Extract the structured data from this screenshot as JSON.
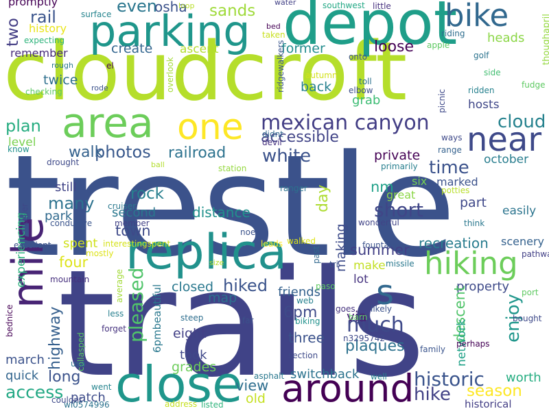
{
  "words": [
    {
      "text": "trestle",
      "color": "#3b528b"
    },
    {
      "text": "trails",
      "color": "#404387"
    },
    {
      "text": "cloudcroft",
      "color": "#b5de2b"
    },
    {
      "text": "depot",
      "color": "#1f9e89"
    },
    {
      "text": "parking",
      "color": "#1f968b"
    },
    {
      "text": "replica",
      "color": "#21918c"
    },
    {
      "text": "area",
      "color": "#6ccd5a"
    },
    {
      "text": "one",
      "color": "#fde725"
    },
    {
      "text": "close",
      "color": "#1f968b"
    },
    {
      "text": "around",
      "color": "#440154"
    },
    {
      "text": "mile",
      "color": "#482475"
    },
    {
      "text": "bike",
      "color": "#31688e"
    },
    {
      "text": "near",
      "color": "#3e4989"
    },
    {
      "text": "hiking",
      "color": "#6ccd5a"
    },
    {
      "text": "s",
      "color": "#31688e"
    },
    {
      "text": "mexican canyon",
      "color": "#433e85"
    },
    {
      "text": "railroad",
      "color": "#2c728e"
    },
    {
      "text": "accessible",
      "color": "#414487"
    },
    {
      "text": "cloud",
      "color": "#26828e"
    },
    {
      "text": "white",
      "color": "#3b528b"
    },
    {
      "text": "photos",
      "color": "#38588c"
    },
    {
      "text": "walk",
      "color": "#34618d"
    },
    {
      "text": "time",
      "color": "#3b528b"
    },
    {
      "text": "rock",
      "color": "#277f8e"
    },
    {
      "text": "short",
      "color": "#404688"
    },
    {
      "text": "many",
      "color": "#2c728e"
    },
    {
      "text": "town",
      "color": "#3e4a89"
    },
    {
      "text": "pleased",
      "color": "#50c46a"
    },
    {
      "text": "highway",
      "color": "#355f8d"
    },
    {
      "text": "enjoy",
      "color": "#1f968b"
    },
    {
      "text": "much",
      "color": "#3e4989"
    },
    {
      "text": "historic",
      "color": "#3a548c"
    },
    {
      "text": "hike",
      "color": "#424186"
    },
    {
      "text": "season",
      "color": "#fde725"
    },
    {
      "text": "view",
      "color": "#2e6e8e"
    },
    {
      "text": "long",
      "color": "#3b528b"
    },
    {
      "text": "access",
      "color": "#22a884"
    },
    {
      "text": "hiked",
      "color": "#3a538b"
    },
    {
      "text": "map",
      "color": "#2d708e"
    },
    {
      "text": "summer",
      "color": "#424086"
    },
    {
      "text": "plaques",
      "color": "#2d718e"
    },
    {
      "text": "four",
      "color": "#dde318"
    },
    {
      "text": "recreation",
      "color": "#287c8e"
    },
    {
      "text": "switchback",
      "color": "#2c738e"
    },
    {
      "text": "distance",
      "color": "#21918c"
    },
    {
      "text": "sands",
      "color": "#9fda3a"
    },
    {
      "text": "create",
      "color": "#32658e"
    },
    {
      "text": "even",
      "color": "#2a768e"
    },
    {
      "text": "osha",
      "color": "#3b528b"
    },
    {
      "text": "rail",
      "color": "#3a548c"
    },
    {
      "text": "two",
      "color": "#433d84"
    },
    {
      "text": "loose",
      "color": "#440154"
    },
    {
      "text": "ascent",
      "color": "#b2dd2d"
    },
    {
      "text": "former",
      "color": "#228c8d"
    },
    {
      "text": "heads",
      "color": "#8bd646"
    },
    {
      "text": "twice",
      "color": "#2e6f8e"
    },
    {
      "text": "back",
      "color": "#26818e"
    },
    {
      "text": "grab",
      "color": "#3dbc74"
    },
    {
      "text": "hosts",
      "color": "#3f4788"
    },
    {
      "text": "plan",
      "color": "#27ad81"
    },
    {
      "text": "level",
      "color": "#7ad151"
    },
    {
      "text": "remember",
      "color": "#472c7a"
    },
    {
      "text": "history",
      "color": "#eae51a"
    },
    {
      "text": "private",
      "color": "#440154"
    },
    {
      "text": "october",
      "color": "#287d8e"
    },
    {
      "text": "nm",
      "color": "#1fa088"
    },
    {
      "text": "six",
      "color": "#75d054"
    },
    {
      "text": "day",
      "color": "#addc30"
    },
    {
      "text": "part",
      "color": "#3f4889"
    },
    {
      "text": "easily",
      "color": "#2b748e"
    },
    {
      "text": "marked",
      "color": "#3b528b"
    },
    {
      "text": "great",
      "color": "#8bd646"
    },
    {
      "text": "making",
      "color": "#3e4c8a"
    },
    {
      "text": "second",
      "color": "#2a778e"
    },
    {
      "text": "park",
      "color": "#306a8e"
    },
    {
      "text": "still",
      "color": "#414487"
    },
    {
      "text": "experiencing",
      "color": "#2db27d"
    },
    {
      "text": "spent",
      "color": "#d0e11c"
    },
    {
      "text": "scenery",
      "color": "#34618d"
    },
    {
      "text": "closed",
      "color": "#2a788e"
    },
    {
      "text": "friends",
      "color": "#34618d"
    },
    {
      "text": "make",
      "color": "#c2df23"
    },
    {
      "text": "lot",
      "color": "#46337f"
    },
    {
      "text": "property",
      "color": "#3e4a89"
    },
    {
      "text": "via",
      "color": "#482173"
    },
    {
      "text": "descent",
      "color": "#50c46a"
    },
    {
      "text": "network",
      "color": "#1fa187"
    },
    {
      "text": "6pm",
      "color": "#3e4a89"
    },
    {
      "text": "eight",
      "color": "#424086"
    },
    {
      "text": "three",
      "color": "#3b528b"
    },
    {
      "text": "took",
      "color": "#3f4889"
    },
    {
      "text": "grades",
      "color": "#6ccd5a"
    },
    {
      "text": "march",
      "color": "#3b528b"
    },
    {
      "text": "quick",
      "color": "#32658e"
    },
    {
      "text": "patch",
      "color": "#3e4c8a"
    },
    {
      "text": "old",
      "color": "#c5e021"
    },
    {
      "text": "worth",
      "color": "#26ad81"
    },
    {
      "text": "historical",
      "color": "#433e85"
    },
    {
      "text": "6pmbeautiful",
      "color": "#2a788e"
    },
    {
      "text": "promptly",
      "color": "#440154"
    },
    {
      "text": "surface",
      "color": "#25848e"
    },
    {
      "text": "loop",
      "color": "#b8de29"
    },
    {
      "text": "water",
      "color": "#424186"
    },
    {
      "text": "southwest",
      "color": "#22a884"
    },
    {
      "text": "little",
      "color": "#46307e"
    },
    {
      "text": "bed",
      "color": "#440154"
    },
    {
      "text": "taken",
      "color": "#c8e020"
    },
    {
      "text": "ridgewalkers",
      "color": "#3a548c"
    },
    {
      "text": "riding",
      "color": "#2e6e8e"
    },
    {
      "text": "thoughapril",
      "color": "#95d840"
    },
    {
      "text": "expecting",
      "color": "#2fb47c"
    },
    {
      "text": "onto",
      "color": "#3c508b"
    },
    {
      "text": "apple",
      "color": "#5ec962"
    },
    {
      "text": "golf",
      "color": "#2c738e"
    },
    {
      "text": "rough",
      "color": "#2a788e"
    },
    {
      "text": "el",
      "color": "#440154"
    },
    {
      "text": "overlook",
      "color": "#a2da37"
    },
    {
      "text": "autumn",
      "color": "#d2e21b"
    },
    {
      "text": "side",
      "color": "#42be71"
    },
    {
      "text": "toll",
      "color": "#2c728e"
    },
    {
      "text": "elbow",
      "color": "#3c4f8a"
    },
    {
      "text": "picnic",
      "color": "#3e4989"
    },
    {
      "text": "ridden",
      "color": "#26818e"
    },
    {
      "text": "fudge",
      "color": "#5ec962"
    },
    {
      "text": "rode",
      "color": "#3b528b"
    },
    {
      "text": "checking",
      "color": "#5ac864"
    },
    {
      "text": "didnt",
      "color": "#31688e"
    },
    {
      "text": "devil",
      "color": "#46307e"
    },
    {
      "text": "ways",
      "color": "#3e4989"
    },
    {
      "text": "range",
      "color": "#34618d"
    },
    {
      "text": "know",
      "color": "#21918c"
    },
    {
      "text": "drought",
      "color": "#3e4989"
    },
    {
      "text": "ball",
      "color": "#b2dd2d"
    },
    {
      "text": "station",
      "color": "#95d840"
    },
    {
      "text": "primarily",
      "color": "#277f8e"
    },
    {
      "text": "keller",
      "color": "#3f4788"
    },
    {
      "text": "cruiser",
      "color": "#2a788e"
    },
    {
      "text": "ranger",
      "color": "#2c728e"
    },
    {
      "text": "potties",
      "color": "#b8de29"
    },
    {
      "text": "member",
      "color": "#424186"
    },
    {
      "text": "conducive",
      "color": "#3a548c"
    },
    {
      "text": "noel",
      "color": "#3b528b"
    },
    {
      "text": "wonderful",
      "color": "#414487"
    },
    {
      "text": "think",
      "color": "#2a788e"
    },
    {
      "text": "interestingspent",
      "color": "#d5e21a"
    },
    {
      "text": "excellent",
      "color": "#3b528b"
    },
    {
      "text": "mostly",
      "color": "#dde318"
    },
    {
      "text": "leads",
      "color": "#fde725"
    },
    {
      "text": "walked",
      "color": "#dde318"
    },
    {
      "text": "past",
      "color": "#31688e"
    },
    {
      "text": "fountain",
      "color": "#3b528b"
    },
    {
      "text": "pathway",
      "color": "#424086"
    },
    {
      "text": "size",
      "color": "#b8de29"
    },
    {
      "text": "tri",
      "color": "#3b528b"
    },
    {
      "text": "missile",
      "color": "#2a788e"
    },
    {
      "text": "average",
      "color": "#a2da37"
    },
    {
      "text": "mountain",
      "color": "#46307e"
    },
    {
      "text": "paso",
      "color": "#5ec962"
    },
    {
      "text": "port",
      "color": "#5ec962"
    },
    {
      "text": "web",
      "color": "#26818e"
    },
    {
      "text": "goes",
      "color": "#46337f"
    },
    {
      "text": "likely",
      "color": "#3b528b"
    },
    {
      "text": "bednice",
      "color": "#440154"
    },
    {
      "text": "less",
      "color": "#277f8e"
    },
    {
      "text": "steep",
      "color": "#2e6e8e"
    },
    {
      "text": "far",
      "color": "#3b528b"
    },
    {
      "text": "barn",
      "color": "#5ec962"
    },
    {
      "text": "bought",
      "color": "#3e4989"
    },
    {
      "text": "forget",
      "color": "#46337f"
    },
    {
      "text": "biking",
      "color": "#21918c"
    },
    {
      "text": "n3295742",
      "color": "#3e4989"
    },
    {
      "text": "family",
      "color": "#3a548c"
    },
    {
      "text": "collasped",
      "color": "#5ac864"
    },
    {
      "text": "perhaps",
      "color": "#440154"
    },
    {
      "text": "section",
      "color": "#3e4a89"
    },
    {
      "text": "usa",
      "color": "#2c728e"
    },
    {
      "text": "asphalt",
      "color": "#2a788e"
    },
    {
      "text": "well",
      "color": "#26818e"
    },
    {
      "text": "went",
      "color": "#25848e"
    },
    {
      "text": "wl0574996",
      "color": "#2c728e"
    },
    {
      "text": "couldnt",
      "color": "#3e4989"
    },
    {
      "text": "address",
      "color": "#c5e021"
    },
    {
      "text": "listed",
      "color": "#2fb47c"
    }
  ]
}
